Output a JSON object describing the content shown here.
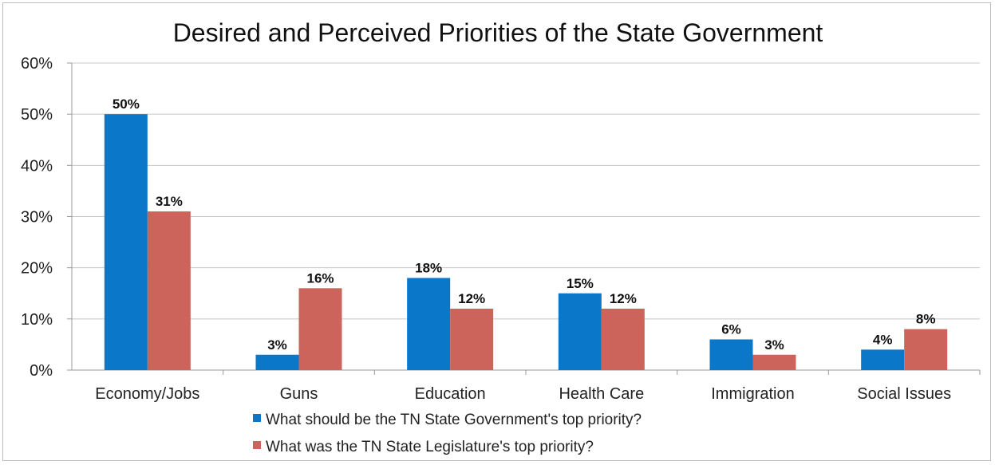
{
  "chart_data": {
    "type": "bar",
    "title": "Desired and Perceived Priorities of the State Government",
    "xlabel": "",
    "ylabel": "",
    "ylim": [
      0,
      60
    ],
    "yticks": [
      "0%",
      "10%",
      "20%",
      "30%",
      "40%",
      "50%",
      "60%"
    ],
    "grid": true,
    "legend_position": "bottom",
    "categories": [
      "Economy/Jobs",
      "Guns",
      "Education",
      "Health Care",
      "Immigration",
      "Social Issues"
    ],
    "series": [
      {
        "name": "What should be the TN State Government's top priority?",
        "color": "#0a77c9",
        "values": [
          50,
          3,
          18,
          15,
          6,
          4
        ],
        "labels": [
          "50%",
          "3%",
          "18%",
          "15%",
          "6%",
          "4%"
        ]
      },
      {
        "name": "What was the TN State Legislature's top priority?",
        "color": "#cd645b",
        "values": [
          31,
          16,
          12,
          12,
          3,
          8
        ],
        "labels": [
          "31%",
          "16%",
          "12%",
          "12%",
          "3%",
          "8%"
        ]
      }
    ]
  }
}
